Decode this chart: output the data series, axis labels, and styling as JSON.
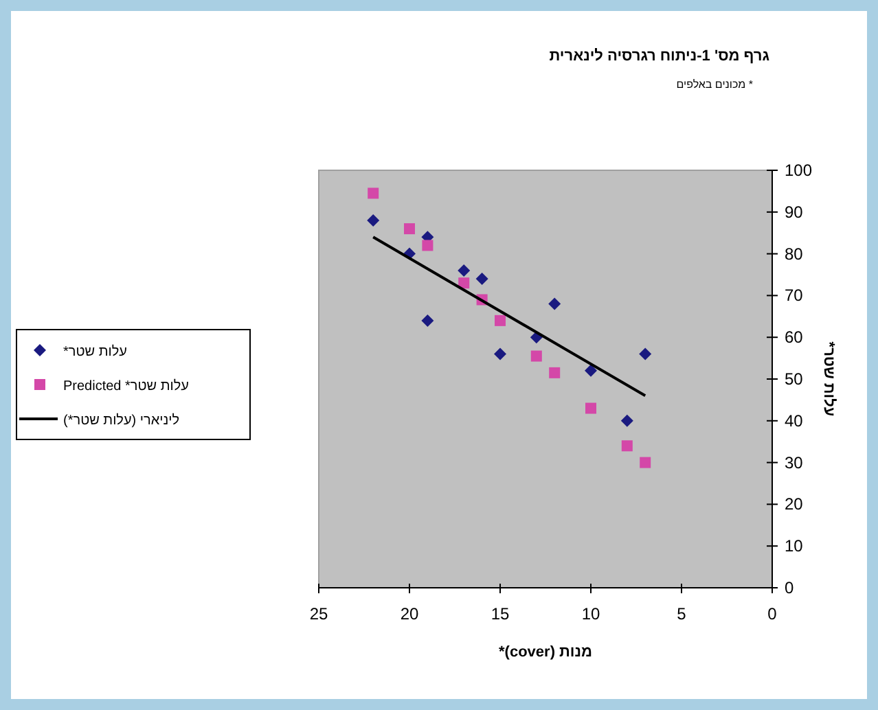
{
  "chart_data": {
    "type": "scatter",
    "title": "גרף מס' 1-ניתוח רגרסיה לינארית",
    "subtitle": "* מכונים באלפים",
    "xlabel": "מנות (cover)*",
    "ylabel": "עלות שטר*",
    "xlim": [
      25,
      0
    ],
    "xticks": [
      25,
      20,
      15,
      10,
      5,
      0
    ],
    "ylim": [
      0,
      100
    ],
    "yticks": [
      0,
      10,
      20,
      30,
      40,
      50,
      60,
      70,
      80,
      90,
      100
    ],
    "legend": "left",
    "series": [
      {
        "name": "עלות שטר*",
        "type": "scatter",
        "marker": "diamond",
        "color": "#1a1a80",
        "x": [
          22,
          20,
          19,
          19,
          17,
          16,
          15,
          13,
          12,
          10,
          8,
          7
        ],
        "values": [
          88,
          80,
          84,
          64,
          76,
          74,
          56,
          60,
          68,
          52,
          40,
          56
        ]
      },
      {
        "name": "עלות שטר* Predicted",
        "type": "scatter",
        "marker": "square",
        "color": "#d448a8",
        "x": [
          22,
          20,
          19,
          17,
          16,
          15,
          13,
          12,
          10,
          8,
          7
        ],
        "values": [
          94.5,
          86,
          82,
          73,
          69,
          64,
          55.5,
          51.5,
          43,
          34,
          30
        ]
      },
      {
        "name": "ליניארי (עלות שטר*)",
        "type": "line",
        "marker": "none",
        "color": "#000000",
        "x": [
          22,
          7
        ],
        "values": [
          84,
          46
        ]
      }
    ]
  }
}
